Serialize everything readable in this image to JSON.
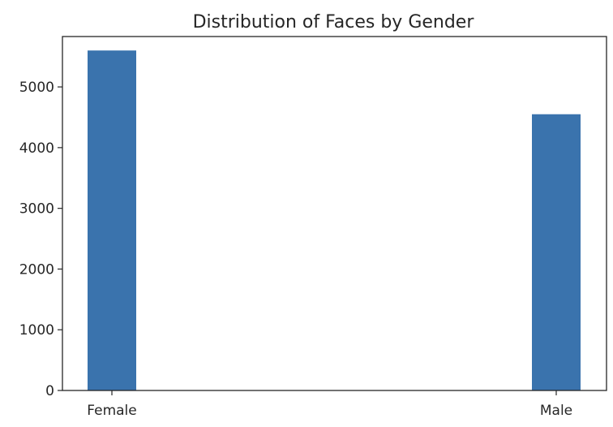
{
  "colors": {
    "bar": "#3a73ad",
    "axis": "#262626",
    "background": "#ffffff"
  },
  "chart_data": {
    "type": "bar",
    "title": "Distribution of Faces by Gender",
    "xlabel": "",
    "ylabel": "",
    "categories": [
      "Female",
      "Male"
    ],
    "values": [
      5600,
      4550
    ],
    "ylim": [
      0,
      5830
    ],
    "yticks": [
      0,
      1000,
      2000,
      3000,
      4000,
      5000
    ],
    "ytick_labels": [
      "0",
      "1000",
      "2000",
      "3000",
      "4000",
      "5000"
    ],
    "grid": false,
    "legend": null
  }
}
